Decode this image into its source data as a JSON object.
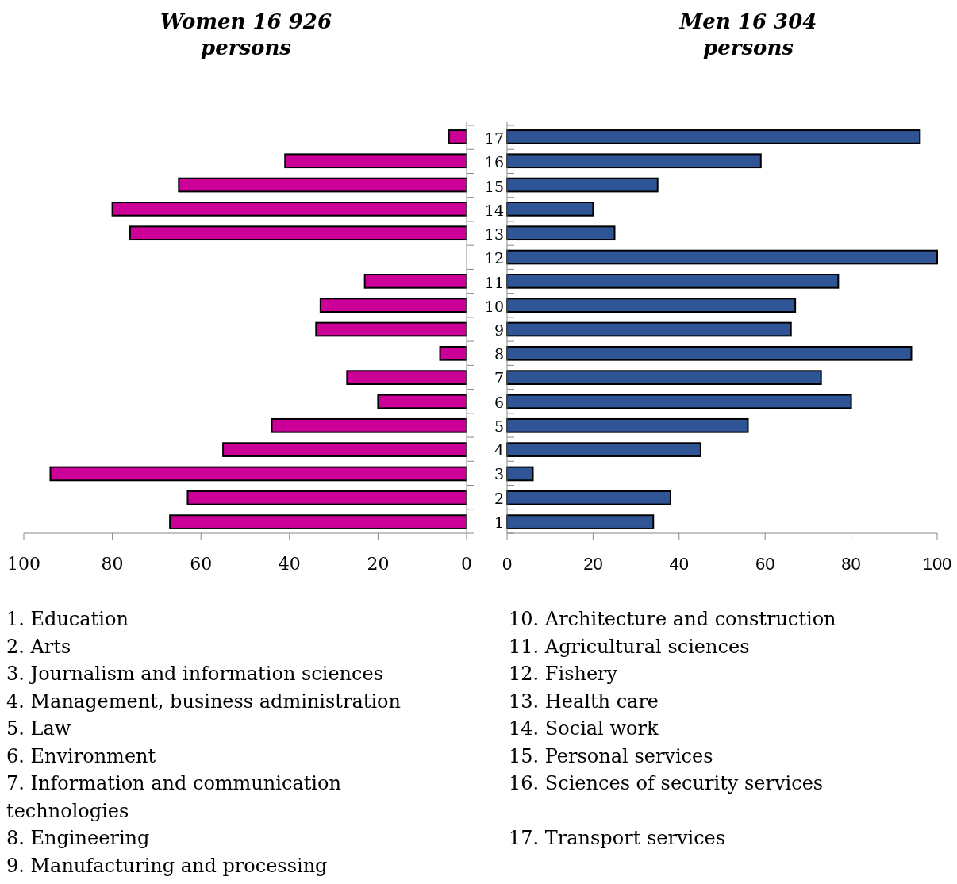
{
  "chart_data": [
    {
      "type": "bar",
      "orientation": "horizontal",
      "title": "Women 16 926 persons",
      "categories": [
        null,
        null,
        null,
        null,
        null,
        null,
        null,
        null,
        null,
        null,
        null,
        null,
        null,
        null,
        null,
        null,
        null
      ],
      "values": [
        4,
        41,
        65,
        80,
        76,
        null,
        23,
        33,
        34,
        6,
        27,
        20,
        44,
        55,
        94,
        63,
        67
      ],
      "color": "#cc0099",
      "xlim": [
        100,
        0
      ],
      "xticks": [
        100,
        80,
        60,
        40,
        20,
        0
      ],
      "tick_labels": "x",
      "annotations": [
        "1. Education",
        "2. Arts",
        "3. Journalism and information sciences",
        "4. Management, business administration",
        "5. Law",
        "6. Environment",
        "7. Information and communication technologies",
        "8. Engineering",
        "9. Manufacturing and processing"
      ]
    },
    {
      "type": "bar",
      "orientation": "horizontal",
      "title": "Men 16 304 persons",
      "categories": [
        "17",
        "16",
        "15",
        "14",
        "13",
        "12",
        "11",
        "10",
        "9",
        "8",
        "7",
        "6",
        "5",
        "4",
        "3",
        "2",
        "1"
      ],
      "values": [
        96,
        59,
        35,
        20,
        25,
        100,
        77,
        67,
        66,
        94,
        73,
        80,
        56,
        45,
        6,
        38,
        34
      ],
      "color": "#2f5597",
      "xlim": [
        0,
        100
      ],
      "xticks": [
        0,
        20,
        40,
        60,
        80,
        100
      ],
      "annotations": [
        "10. Architecture and construction",
        "11. Agricultural sciences",
        "12. Fishery",
        "13. Health care",
        "14. Social work",
        "15. Personal services",
        "16. Sciences of security services",
        "17. Transport services"
      ]
    }
  ]
}
